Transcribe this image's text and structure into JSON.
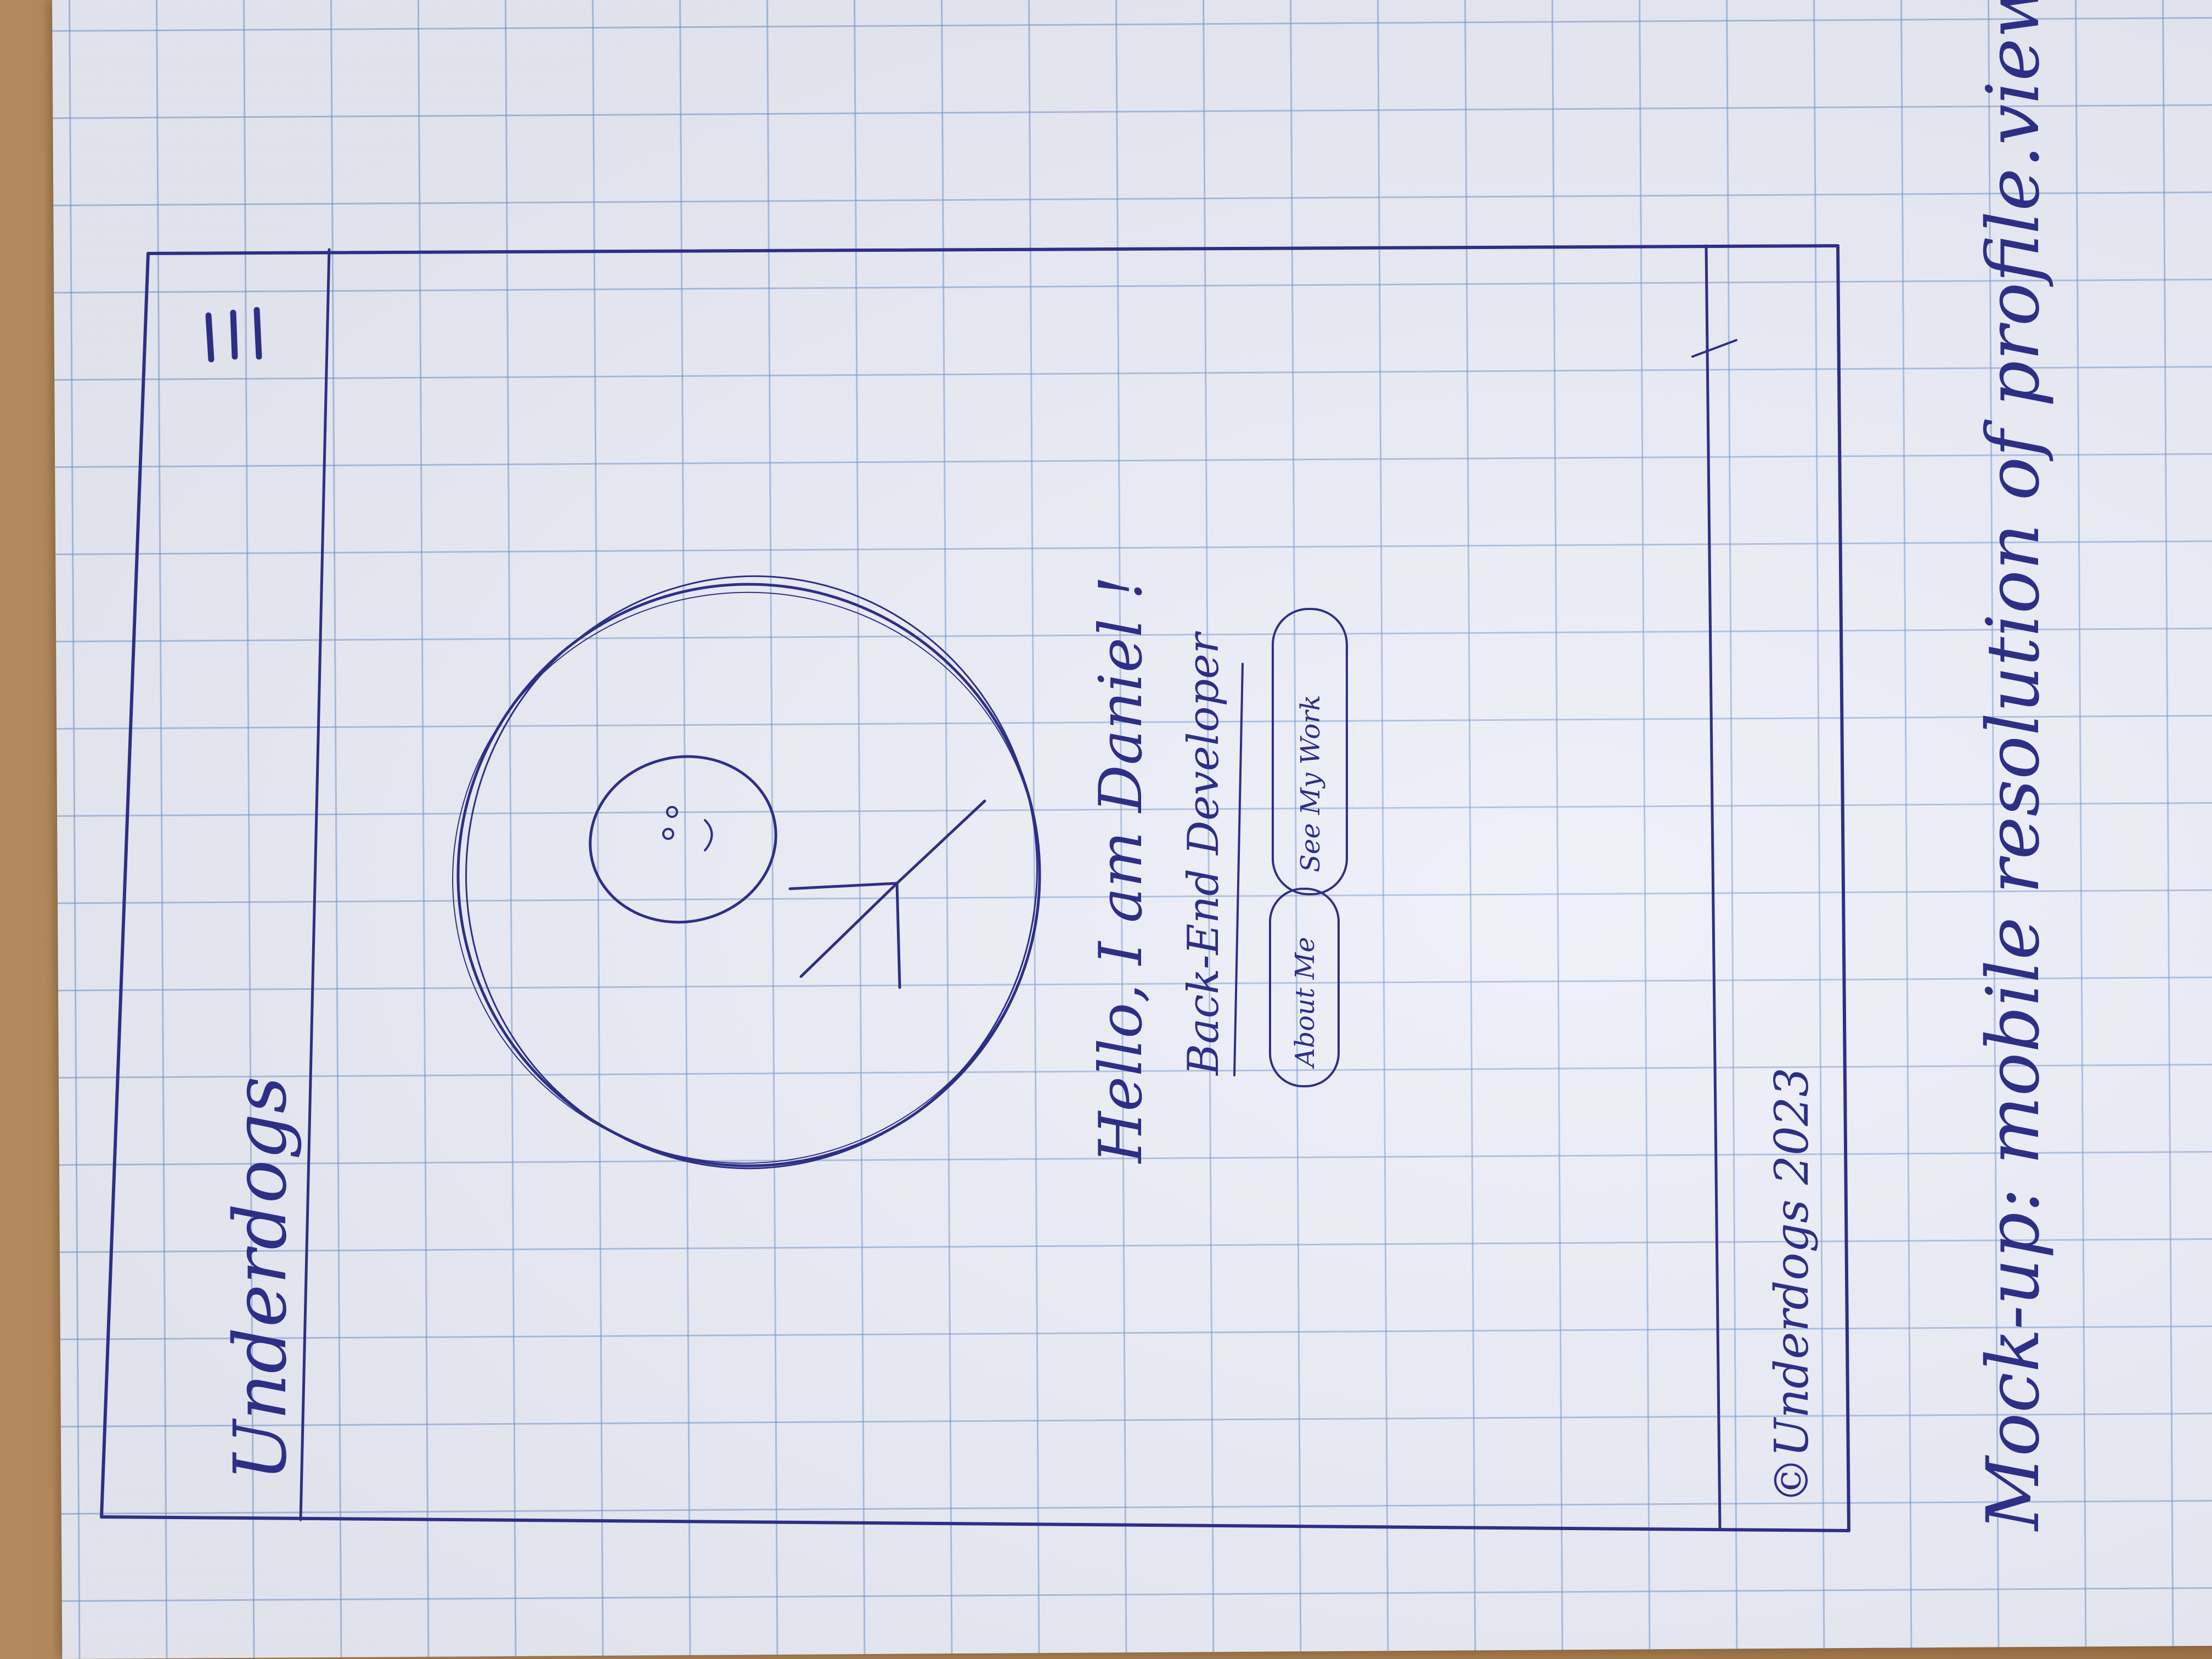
{
  "header": {
    "brand": "Underdogs",
    "menu_icon": "hamburger-menu-icon"
  },
  "hero": {
    "avatar_icon": "person-avatar-icon",
    "greeting": "Hello, I am Daniel !",
    "role": "Back-End Developer",
    "buttons": {
      "about_label": "About Me",
      "work_label": "See My Work"
    }
  },
  "footer": {
    "copyright": "©Underdogs 2023"
  },
  "note": {
    "caption": "Mock-up: mobile resolution of profile.view.php"
  },
  "colors": {
    "ink": "#2d2f86",
    "grid": "#6e96cd",
    "paper": "#eceef8",
    "table": "#a57c4f"
  }
}
